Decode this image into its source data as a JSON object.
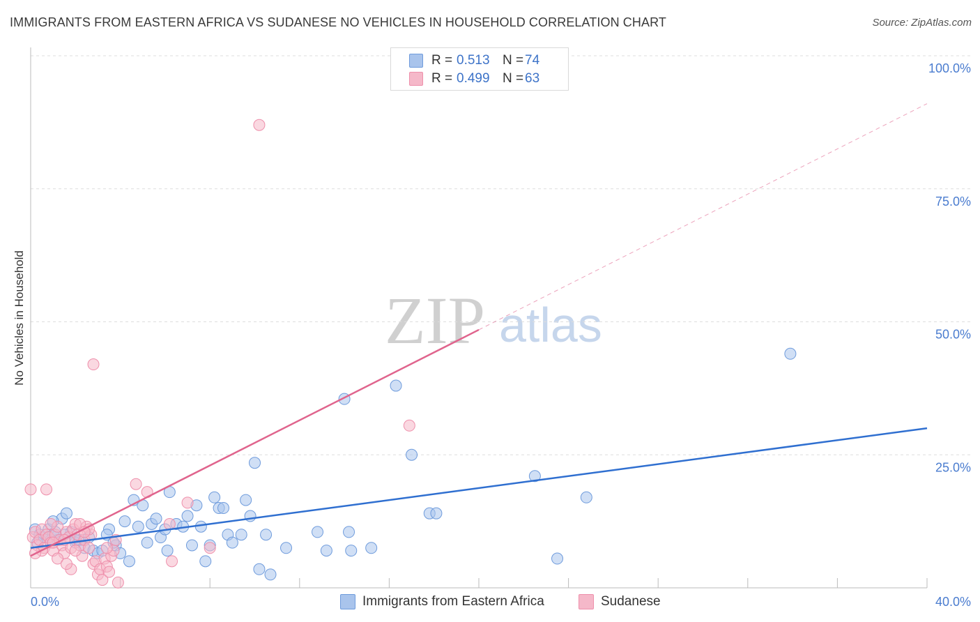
{
  "header": {
    "title": "IMMIGRANTS FROM EASTERN AFRICA VS SUDANESE NO VEHICLES IN HOUSEHOLD CORRELATION CHART",
    "source": "Source: ZipAtlas.com"
  },
  "watermark": {
    "zip": "ZIP",
    "atlas": "atlas"
  },
  "colors": {
    "blue_fill": "#a9c4ec",
    "blue_stroke": "#6e9bdc",
    "blue_line": "#2f6fd0",
    "pink_fill": "#f5b8c9",
    "pink_stroke": "#ee8fab",
    "pink_line": "#e0648d",
    "grid": "#dddddd",
    "axis_text": "#4a7ccf"
  },
  "legend_top": [
    {
      "r_label": "R =",
      "r_value": "0.513",
      "n_label": "N =",
      "n_value": "74"
    },
    {
      "r_label": "R =",
      "r_value": "0.499",
      "n_label": "N =",
      "n_value": "63"
    }
  ],
  "chart_data": {
    "type": "scatter",
    "title": "IMMIGRANTS FROM EASTERN AFRICA VS SUDANESE NO VEHICLES IN HOUSEHOLD CORRELATION CHART",
    "xlabel": "",
    "ylabel": "No Vehicles in Household",
    "xlim": [
      0,
      40
    ],
    "ylim": [
      0,
      100
    ],
    "x_tick_labels": [
      "0.0%",
      "40.0%"
    ],
    "y_ticks": [
      25,
      50,
      75,
      100
    ],
    "y_tick_labels": [
      "25.0%",
      "50.0%",
      "75.0%",
      "100.0%"
    ],
    "grid": true,
    "legend_position": "top-center",
    "series": [
      {
        "name": "Immigrants from Eastern Africa",
        "color": "#a9c4ec",
        "R": 0.513,
        "N": 74,
        "trend": {
          "x": [
            0,
            40
          ],
          "y": [
            7.5,
            30.0
          ]
        },
        "points": [
          [
            0.2,
            11.0
          ],
          [
            0.4,
            10.0
          ],
          [
            0.6,
            9.5
          ],
          [
            0.8,
            11.0
          ],
          [
            1.0,
            10.0
          ],
          [
            1.2,
            9.0
          ],
          [
            1.4,
            13.0
          ],
          [
            1.6,
            14.0
          ],
          [
            1.8,
            10.5
          ],
          [
            2.0,
            8.5
          ],
          [
            2.2,
            9.0
          ],
          [
            2.4,
            7.5
          ],
          [
            2.6,
            9.5
          ],
          [
            2.8,
            7.0
          ],
          [
            3.0,
            6.5
          ],
          [
            3.2,
            7.0
          ],
          [
            3.5,
            11.0
          ],
          [
            3.4,
            10.0
          ],
          [
            3.8,
            8.0
          ],
          [
            4.0,
            6.5
          ],
          [
            4.2,
            12.5
          ],
          [
            4.4,
            5.0
          ],
          [
            4.6,
            16.5
          ],
          [
            4.8,
            11.5
          ],
          [
            5.0,
            15.5
          ],
          [
            5.2,
            8.5
          ],
          [
            5.4,
            12.0
          ],
          [
            5.6,
            13.0
          ],
          [
            5.8,
            9.5
          ],
          [
            6.0,
            11.0
          ],
          [
            6.1,
            7.0
          ],
          [
            6.2,
            18.0
          ],
          [
            6.5,
            12.0
          ],
          [
            6.8,
            11.5
          ],
          [
            7.0,
            13.5
          ],
          [
            7.2,
            8.0
          ],
          [
            7.4,
            15.5
          ],
          [
            7.6,
            11.5
          ],
          [
            7.8,
            5.0
          ],
          [
            8.0,
            8.0
          ],
          [
            8.2,
            17.0
          ],
          [
            8.4,
            15.0
          ],
          [
            8.6,
            15.0
          ],
          [
            8.8,
            10.0
          ],
          [
            9.0,
            8.5
          ],
          [
            9.4,
            10.0
          ],
          [
            9.6,
            16.5
          ],
          [
            9.8,
            13.5
          ],
          [
            10.0,
            23.5
          ],
          [
            10.2,
            3.5
          ],
          [
            10.5,
            10.0
          ],
          [
            10.7,
            2.5
          ],
          [
            11.4,
            7.5
          ],
          [
            12.8,
            10.5
          ],
          [
            13.2,
            7.0
          ],
          [
            14.0,
            35.5
          ],
          [
            14.2,
            10.5
          ],
          [
            14.3,
            7.0
          ],
          [
            15.2,
            7.5
          ],
          [
            16.3,
            38.0
          ],
          [
            17.0,
            25.0
          ],
          [
            17.8,
            14.0
          ],
          [
            18.1,
            14.0
          ],
          [
            22.5,
            21.0
          ],
          [
            23.5,
            5.5
          ],
          [
            24.8,
            17.0
          ],
          [
            33.9,
            44.0
          ],
          [
            1.0,
            12.5
          ],
          [
            2.0,
            9.0
          ],
          [
            1.5,
            10.0
          ],
          [
            0.3,
            8.5
          ],
          [
            0.9,
            9.0
          ],
          [
            3.7,
            8.5
          ],
          [
            1.1,
            10.5
          ]
        ]
      },
      {
        "name": "Sudanese",
        "color": "#f5b8c9",
        "R": 0.499,
        "N": 63,
        "trend": {
          "x": [
            0,
            20
          ],
          "y": [
            6.0,
            48.5
          ]
        },
        "trend_extension": {
          "x": [
            20,
            40
          ],
          "y": [
            48.5,
            91.0
          ]
        },
        "points": [
          [
            0.0,
            18.5
          ],
          [
            0.1,
            9.5
          ],
          [
            0.2,
            10.5
          ],
          [
            0.3,
            8.0
          ],
          [
            0.4,
            9.0
          ],
          [
            0.5,
            11.0
          ],
          [
            0.6,
            7.5
          ],
          [
            0.7,
            10.0
          ],
          [
            0.8,
            9.5
          ],
          [
            0.9,
            8.5
          ],
          [
            1.0,
            7.0
          ],
          [
            1.1,
            10.0
          ],
          [
            1.2,
            11.5
          ],
          [
            1.3,
            9.0
          ],
          [
            1.4,
            8.0
          ],
          [
            1.5,
            6.5
          ],
          [
            1.6,
            10.5
          ],
          [
            1.7,
            9.5
          ],
          [
            1.8,
            7.5
          ],
          [
            1.9,
            11.0
          ],
          [
            2.0,
            12.0
          ],
          [
            2.1,
            10.0
          ],
          [
            2.2,
            8.0
          ],
          [
            2.3,
            6.0
          ],
          [
            2.4,
            9.0
          ],
          [
            2.5,
            11.5
          ],
          [
            2.6,
            7.5
          ],
          [
            2.7,
            10.0
          ],
          [
            2.8,
            4.5
          ],
          [
            2.9,
            5.0
          ],
          [
            3.0,
            2.5
          ],
          [
            3.1,
            3.5
          ],
          [
            3.2,
            1.5
          ],
          [
            3.3,
            5.5
          ],
          [
            3.4,
            4.0
          ],
          [
            3.5,
            3.0
          ],
          [
            3.6,
            6.0
          ],
          [
            3.7,
            7.0
          ],
          [
            3.8,
            9.0
          ],
          [
            3.9,
            1.0
          ],
          [
            2.8,
            42.0
          ],
          [
            0.7,
            18.5
          ],
          [
            4.7,
            19.5
          ],
          [
            5.2,
            18.0
          ],
          [
            6.3,
            5.0
          ],
          [
            7.0,
            16.0
          ],
          [
            6.2,
            12.0
          ],
          [
            8.0,
            7.5
          ],
          [
            10.2,
            87.0
          ],
          [
            16.9,
            30.5
          ],
          [
            1.0,
            8.5
          ],
          [
            1.5,
            9.0
          ],
          [
            2.0,
            7.0
          ],
          [
            0.5,
            7.0
          ],
          [
            1.2,
            5.5
          ],
          [
            1.8,
            3.5
          ],
          [
            2.2,
            12.0
          ],
          [
            2.6,
            11.0
          ],
          [
            3.4,
            7.5
          ],
          [
            0.2,
            6.5
          ],
          [
            0.9,
            12.0
          ],
          [
            1.6,
            4.5
          ],
          [
            2.4,
            10.5
          ]
        ]
      }
    ]
  },
  "legend_bottom": [
    {
      "label": "Immigrants from Eastern Africa"
    },
    {
      "label": "Sudanese"
    }
  ]
}
